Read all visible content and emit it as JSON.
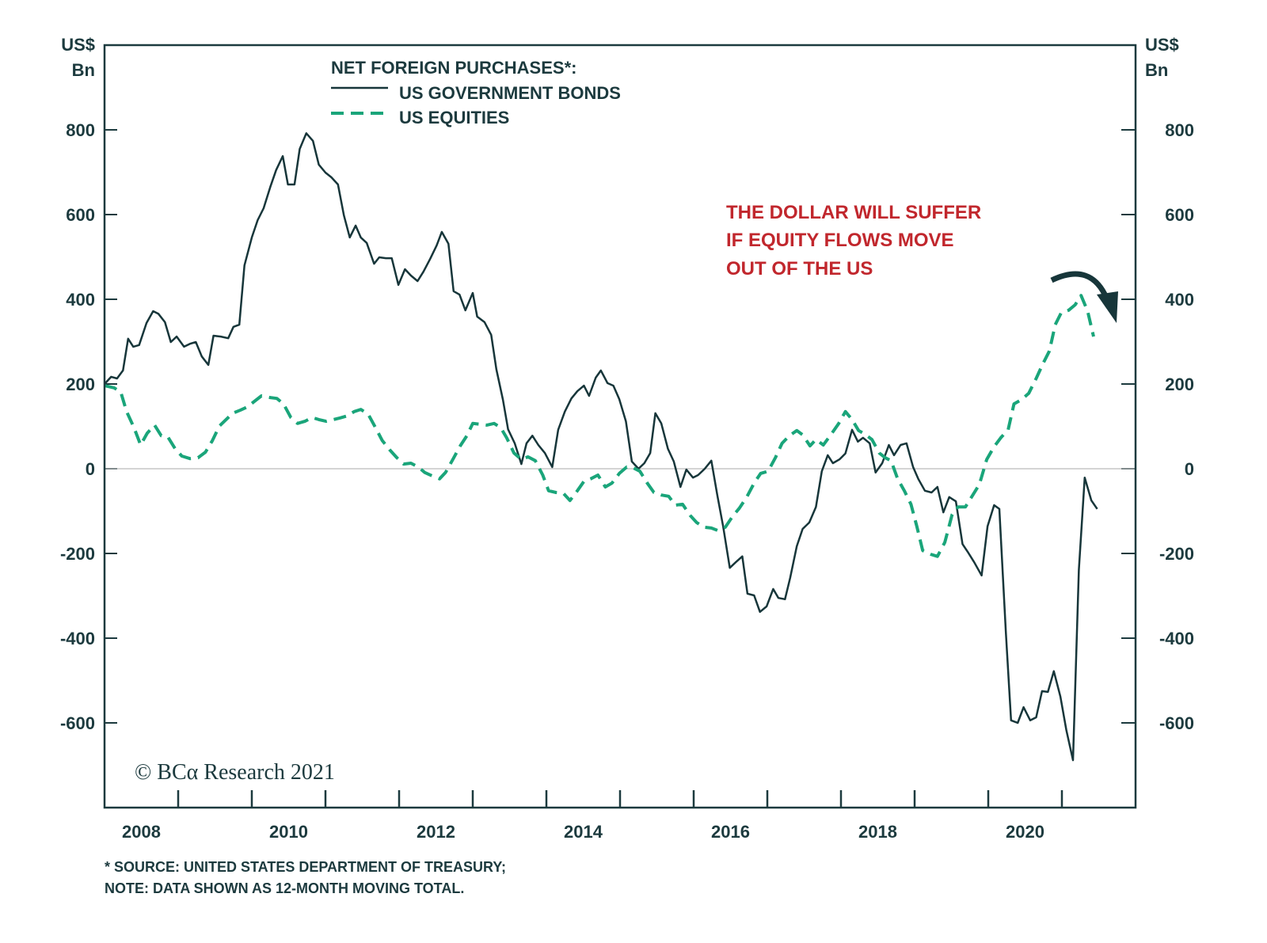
{
  "chart_data": {
    "type": "line",
    "legend_title": "NET FOREIGN PURCHASES*:",
    "legend_placement": "top-left",
    "left_unit": [
      "US$",
      "Bn"
    ],
    "right_unit": [
      "US$",
      "Bn"
    ],
    "ylim": [
      -800,
      1000
    ],
    "xlim": [
      2008,
      2022
    ],
    "yticks": [
      800,
      600,
      400,
      200,
      0,
      -200,
      -400,
      -600
    ],
    "ytick_labels": [
      "800",
      "600",
      "400",
      "200",
      "0",
      "-200",
      "-400",
      "-600"
    ],
    "xtick_labels": [
      "2008",
      "2010",
      "2012",
      "2014",
      "2016",
      "2018",
      "2020"
    ],
    "zero_line": true,
    "grid": false,
    "annotation": [
      "THE DOLLAR WILL SUFFER",
      "IF EQUITY FLOWS MOVE",
      "OUT OF THE US"
    ],
    "annotation_icon": "curved-down-arrow-icon",
    "footnote": [
      "* SOURCE: UNITED STATES DEPARTMENT OF TREASURY;",
      "NOTE: DATA SHOWN AS 12-MONTH MOVING TOTAL."
    ],
    "logo_text": "© BCα Research 2021",
    "colors": {
      "bonds": "#17363a",
      "equities": "#1aa57a",
      "annotation": "#c1272d",
      "axis": "#1c3a3e",
      "zero_line": "#bbbbbb"
    },
    "series": [
      {
        "name": "US GOVERNMENT BONDS",
        "style": "solid",
        "x": [
          2008.0,
          2008.09,
          2008.17,
          2008.25,
          2008.32,
          2008.39,
          2008.47,
          2008.57,
          2008.66,
          2008.73,
          2008.82,
          2008.9,
          2008.98,
          2009.08,
          2009.16,
          2009.24,
          2009.32,
          2009.41,
          2009.48,
          2009.58,
          2009.68,
          2009.75,
          2009.83,
          2009.9,
          2010.0,
          2010.08,
          2010.16,
          2010.25,
          2010.33,
          2010.42,
          2010.49,
          2010.58,
          2010.65,
          2010.74,
          2010.83,
          2010.91,
          2011.0,
          2011.08,
          2011.17,
          2011.25,
          2011.33,
          2011.41,
          2011.48,
          2011.56,
          2011.66,
          2011.73,
          2011.82,
          2011.9,
          2011.99,
          2012.08,
          2012.16,
          2012.25,
          2012.33,
          2012.42,
          2012.51,
          2012.58,
          2012.67,
          2012.74,
          2012.82,
          2012.9,
          2013.0,
          2013.06,
          2013.16,
          2013.25,
          2013.32,
          2013.41,
          2013.48,
          2013.57,
          2013.66,
          2013.73,
          2013.81,
          2013.89,
          2013.98,
          2014.08,
          2014.16,
          2014.25,
          2014.34,
          2014.42,
          2014.51,
          2014.58,
          2014.67,
          2014.74,
          2014.83,
          2014.91,
          2014.99,
          2015.08,
          2015.16,
          2015.25,
          2015.33,
          2015.41,
          2015.48,
          2015.56,
          2015.65,
          2015.73,
          2015.82,
          2015.9,
          2015.99,
          2016.06,
          2016.15,
          2016.24,
          2016.32,
          2016.4,
          2016.49,
          2016.57,
          2016.66,
          2016.73,
          2016.82,
          2016.9,
          2016.99,
          2017.08,
          2017.15,
          2017.24,
          2017.31,
          2017.4,
          2017.48,
          2017.57,
          2017.66,
          2017.74,
          2017.82,
          2017.89,
          2017.98,
          2018.06,
          2018.15,
          2018.23,
          2018.3,
          2018.39,
          2018.47,
          2018.56,
          2018.65,
          2018.72,
          2018.81,
          2018.89,
          2018.98,
          2019.05,
          2019.14,
          2019.23,
          2019.31,
          2019.39,
          2019.47,
          2019.56,
          2019.65,
          2019.72,
          2019.81,
          2019.91,
          2019.99,
          2020.08,
          2020.15,
          2020.24,
          2020.31,
          2020.4,
          2020.48,
          2020.57,
          2020.65,
          2020.73,
          2020.81,
          2020.89,
          2020.98,
          2021.06,
          2021.15,
          2021.23,
          2021.31,
          2021.4,
          2021.48
        ],
        "values": [
          200,
          217,
          213,
          232,
          307,
          288,
          292,
          344,
          372,
          366,
          346,
          299,
          312,
          288,
          295,
          299,
          265,
          245,
          314,
          312,
          308,
          335,
          340,
          480,
          546,
          587,
          615,
          665,
          705,
          738,
          671,
          671,
          755,
          792,
          774,
          718,
          699,
          688,
          671,
          598,
          546,
          574,
          546,
          533,
          484,
          499,
          497,
          497,
          434,
          471,
          456,
          443,
          465,
          495,
          527,
          559,
          531,
          419,
          411,
          374,
          415,
          359,
          346,
          316,
          235,
          163,
          93,
          60,
          11,
          60,
          78,
          56,
          37,
          4,
          92,
          135,
          166,
          183,
          196,
          172,
          215,
          232,
          202,
          196,
          164,
          112,
          17,
          0,
          13,
          37,
          131,
          107,
          47,
          17,
          -43,
          -2,
          -21,
          -15,
          0,
          19,
          -62,
          -136,
          -234,
          -221,
          -207,
          -295,
          -299,
          -338,
          -325,
          -284,
          -305,
          -308,
          -258,
          -183,
          -142,
          -127,
          -90,
          -6,
          32,
          13,
          22,
          36,
          92,
          64,
          73,
          60,
          -9,
          13,
          56,
          32,
          56,
          60,
          4,
          -24,
          -52,
          -56,
          -43,
          -103,
          -67,
          -77,
          -178,
          -196,
          -221,
          -252,
          -136,
          -86,
          -95,
          -389,
          -594,
          -600,
          -563,
          -594,
          -587,
          -525,
          -527,
          -478,
          -538,
          -617,
          -688,
          -239,
          -21,
          -75,
          -95
        ]
      },
      {
        "name": "US EQUITIES",
        "style": "dashed",
        "x": [
          2008.0,
          2008.13,
          2008.22,
          2008.3,
          2008.4,
          2008.49,
          2008.58,
          2008.68,
          2008.77,
          2008.86,
          2008.96,
          2009.05,
          2009.16,
          2009.27,
          2009.37,
          2009.46,
          2009.56,
          2009.65,
          2009.74,
          2009.84,
          2009.94,
          2010.02,
          2010.13,
          2010.25,
          2010.34,
          2010.43,
          2010.53,
          2010.62,
          2010.72,
          2010.82,
          2010.91,
          2011.01,
          2011.11,
          2011.2,
          2011.3,
          2011.39,
          2011.48,
          2011.58,
          2011.68,
          2011.77,
          2011.87,
          2011.97,
          2012.06,
          2012.16,
          2012.26,
          2012.35,
          2012.45,
          2012.55,
          2012.63,
          2012.73,
          2012.83,
          2012.92,
          2013.0,
          2013.1,
          2013.19,
          2013.29,
          2013.38,
          2013.46,
          2013.56,
          2013.66,
          2013.75,
          2013.85,
          2013.95,
          2014.03,
          2014.13,
          2014.23,
          2014.32,
          2014.42,
          2014.51,
          2014.6,
          2014.7,
          2014.8,
          2014.89,
          2014.99,
          2015.09,
          2015.18,
          2015.27,
          2015.37,
          2015.46,
          2015.56,
          2015.66,
          2015.75,
          2015.85,
          2015.95,
          2016.04,
          2016.14,
          2016.24,
          2016.33,
          2016.43,
          2016.53,
          2016.62,
          2016.72,
          2016.82,
          2016.91,
          2017.01,
          2017.11,
          2017.2,
          2017.3,
          2017.4,
          2017.48,
          2017.58,
          2017.66,
          2017.76,
          2017.87,
          2017.97,
          2018.06,
          2018.15,
          2018.24,
          2018.32,
          2018.42,
          2018.52,
          2018.6,
          2018.68,
          2018.77,
          2018.86,
          2018.95,
          2019.03,
          2019.11,
          2019.22,
          2019.31,
          2019.41,
          2019.51,
          2019.59,
          2019.69,
          2019.78,
          2019.88,
          2019.98,
          2020.08,
          2020.17,
          2020.27,
          2020.35,
          2020.45,
          2020.55,
          2020.65,
          2020.74,
          2020.83,
          2020.91,
          2020.99,
          2021.09,
          2021.18,
          2021.26,
          2021.35,
          2021.43
        ],
        "values": [
          196,
          191,
          181,
          135,
          97,
          56,
          84,
          103,
          78,
          75,
          47,
          30,
          24,
          26,
          39,
          65,
          101,
          116,
          131,
          138,
          146,
          157,
          172,
          168,
          166,
          153,
          121,
          107,
          112,
          121,
          116,
          112,
          116,
          120,
          125,
          135,
          140,
          129,
          97,
          67,
          45,
          26,
          11,
          13,
          4,
          -9,
          -17,
          -24,
          -9,
          22,
          54,
          78,
          107,
          105,
          103,
          107,
          97,
          73,
          37,
          22,
          28,
          19,
          -15,
          -52,
          -56,
          -58,
          -75,
          -52,
          -30,
          -24,
          -15,
          -43,
          -34,
          -11,
          4,
          2,
          -6,
          -34,
          -56,
          -62,
          -65,
          -86,
          -84,
          -110,
          -127,
          -138,
          -140,
          -146,
          -138,
          -112,
          -93,
          -67,
          -34,
          -11,
          -6,
          26,
          60,
          78,
          90,
          80,
          54,
          69,
          56,
          82,
          107,
          135,
          116,
          90,
          82,
          69,
          37,
          26,
          19,
          -24,
          -52,
          -84,
          -136,
          -193,
          -202,
          -207,
          -174,
          -108,
          -90,
          -90,
          -65,
          -37,
          22,
          52,
          73,
          92,
          153,
          163,
          178,
          213,
          247,
          278,
          340,
          368,
          374,
          387,
          409,
          372,
          312
        ]
      }
    ]
  }
}
